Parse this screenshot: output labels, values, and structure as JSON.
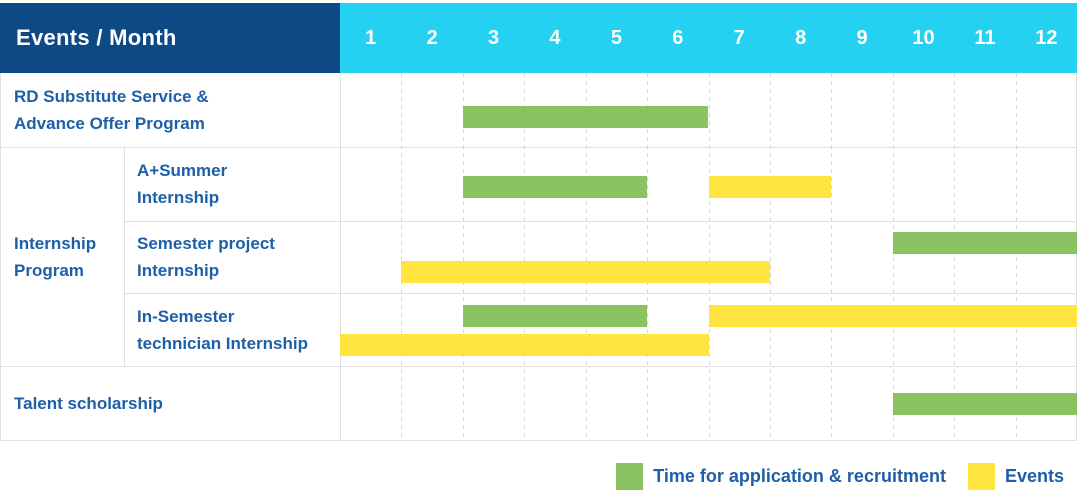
{
  "header": {
    "label": "Events / Month",
    "months": [
      "1",
      "2",
      "3",
      "4",
      "5",
      "6",
      "7",
      "8",
      "9",
      "10",
      "11",
      "12"
    ]
  },
  "rows": {
    "rd_substitute": "RD Substitute Service &\nAdvance Offer Program",
    "internship_group": "Internship\nProgram",
    "a_plus_summer": "A+Summer\nInternship",
    "semester_project": "Semester project\nInternship",
    "in_semester": "In-Semester\ntechnician Internship",
    "talent": "Talent scholarship"
  },
  "legend": [
    {
      "kind": "application",
      "label": "Time for application & recruitment"
    },
    {
      "kind": "event",
      "label": "Events"
    }
  ],
  "colors": {
    "header_bg": "#0d4a85",
    "header_text": "#ffffff",
    "months_bg": "#24d1f0",
    "bar_application": "#8bc262",
    "bar_event": "#ffe33e",
    "label_text": "#1d5fa8",
    "grid_solid": "#e0e0e0",
    "grid_dashed": "#d8d8d8"
  },
  "chart_data": {
    "type": "gantt",
    "title": "Events / Month",
    "x_unit": "month",
    "x_ticks": [
      1,
      2,
      3,
      4,
      5,
      6,
      7,
      8,
      9,
      10,
      11,
      12
    ],
    "x_range": [
      1,
      12
    ],
    "legend": {
      "application": "Time for application & recruitment",
      "event": "Events"
    },
    "tasks": [
      {
        "group": "",
        "name": "RD Substitute Service & Advance Offer Program",
        "bars": [
          {
            "kind": "application",
            "start_month": 3,
            "end_month": 6,
            "lane": "single"
          }
        ]
      },
      {
        "group": "Internship Program",
        "name": "A+Summer Internship",
        "bars": [
          {
            "kind": "application",
            "start_month": 3,
            "end_month": 5,
            "lane": "single"
          },
          {
            "kind": "event",
            "start_month": 7,
            "end_month": 8,
            "lane": "single"
          }
        ]
      },
      {
        "group": "Internship Program",
        "name": "Semester project Internship",
        "bars": [
          {
            "kind": "application",
            "start_month": 10,
            "end_month": 12,
            "lane": "upper"
          },
          {
            "kind": "event",
            "start_month": 2,
            "end_month": 7,
            "lane": "lower"
          }
        ]
      },
      {
        "group": "Internship Program",
        "name": "In-Semester technician Internship",
        "bars": [
          {
            "kind": "application",
            "start_month": 3,
            "end_month": 5,
            "lane": "upper"
          },
          {
            "kind": "event",
            "start_month": 7,
            "end_month": 12,
            "lane": "upper"
          },
          {
            "kind": "event",
            "start_month": 1,
            "end_month": 6,
            "lane": "lower"
          }
        ]
      },
      {
        "group": "",
        "name": "Talent scholarship",
        "bars": [
          {
            "kind": "application",
            "start_month": 10,
            "end_month": 12,
            "lane": "single"
          }
        ]
      }
    ]
  }
}
